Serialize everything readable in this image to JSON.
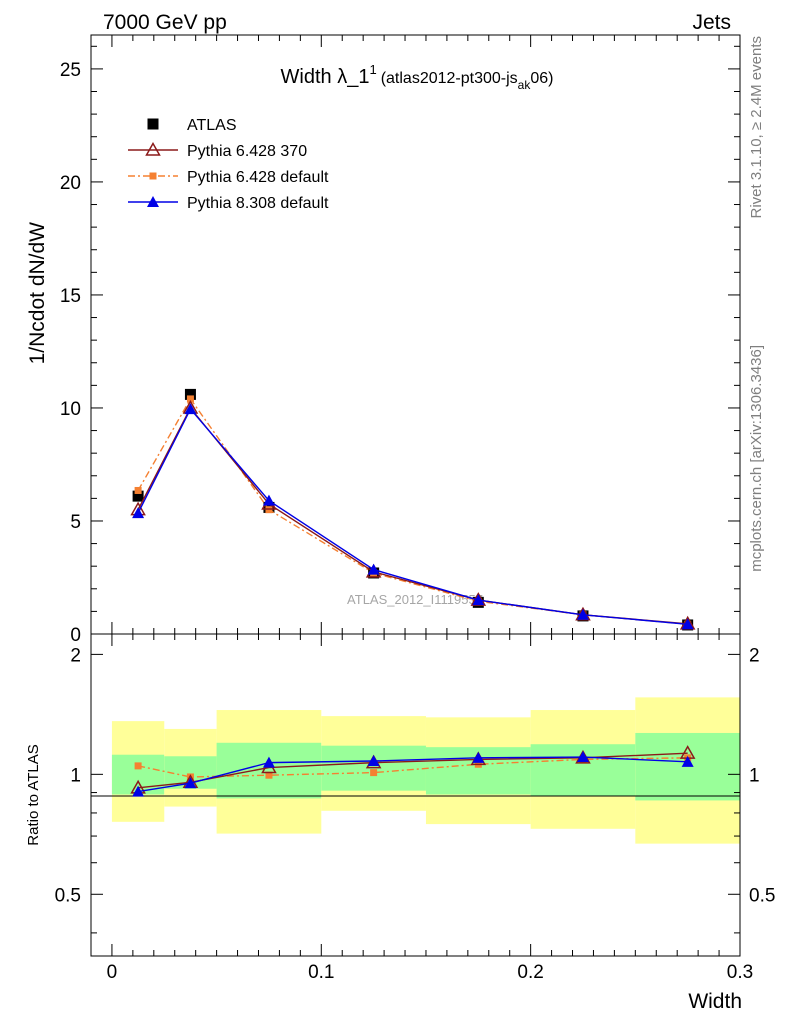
{
  "header": {
    "energy_label": "7000 GeV pp",
    "process_label": "Jets"
  },
  "side_labels": {
    "rivet": "Rivet 3.1.10, ≥ 2.4M events",
    "source": "mcplots.cern.ch [arXiv:1306.3436]"
  },
  "watermark": "ATLAS_2012_I1119557",
  "colors": {
    "data": "#000000",
    "p6_370": "#8b1a1a",
    "p6_default": "#f58031",
    "p8_default": "#0000e6",
    "band_inner": "#99ff99",
    "band_outer": "#ffff99"
  },
  "chart_data": [
    {
      "type": "line",
      "title_main": "Width λ_1",
      "title_sup": "1",
      "title_paren_open": "(atlas2012-pt300-js",
      "title_sub": "ak",
      "title_paren_close": "06)",
      "ylabel": "1/Ncdot dN/dW",
      "xlim": [
        -0.01,
        0.3
      ],
      "ylim": [
        0,
        26.5
      ],
      "yticks": [
        0,
        5,
        10,
        15,
        20,
        25
      ],
      "ytick_labels": [
        "0",
        "5",
        "10",
        "15",
        "20",
        "25"
      ],
      "legend_position": "top-left",
      "x": [
        0.0125,
        0.0375,
        0.075,
        0.125,
        0.175,
        0.225,
        0.275
      ],
      "series": [
        {
          "name": "ATLAS",
          "marker": "square",
          "values": [
            6.1,
            10.6,
            5.6,
            2.7,
            1.4,
            0.8,
            0.4
          ]
        },
        {
          "name": "Pythia 6.428 370",
          "marker": "open-triangle",
          "values": [
            5.5,
            10.0,
            5.75,
            2.75,
            1.5,
            0.85,
            0.45
          ]
        },
        {
          "name": "Pythia 6.428 default",
          "marker": "small-square",
          "dashed": true,
          "values": [
            6.35,
            10.4,
            5.5,
            2.7,
            1.45,
            0.85,
            0.43
          ]
        },
        {
          "name": "Pythia 8.308 default",
          "marker": "filled-triangle",
          "values": [
            5.35,
            9.95,
            5.9,
            2.85,
            1.5,
            0.85,
            0.43
          ]
        }
      ]
    },
    {
      "type": "line",
      "ylabel": "Ratio to ATLAS",
      "xlabel": "Width",
      "xlim": [
        -0.01,
        0.3
      ],
      "ylim": [
        0.35,
        2.25
      ],
      "yticks": [
        0.5,
        1,
        2
      ],
      "ytick_labels": [
        "0.5",
        "1",
        "2"
      ],
      "xticks": [
        0,
        0.1,
        0.2,
        0.3
      ],
      "xtick_labels": [
        "0",
        "0.1",
        "0.2",
        "0.3"
      ],
      "bands": [
        {
          "x0": 0.0,
          "x1": 0.025,
          "inner": [
            0.89,
            1.12
          ],
          "outer": [
            0.76,
            1.36
          ]
        },
        {
          "x0": 0.025,
          "x1": 0.05,
          "inner": [
            0.92,
            1.11
          ],
          "outer": [
            0.83,
            1.3
          ]
        },
        {
          "x0": 0.05,
          "x1": 0.1,
          "inner": [
            0.87,
            1.2
          ],
          "outer": [
            0.71,
            1.45
          ]
        },
        {
          "x0": 0.1,
          "x1": 0.15,
          "inner": [
            0.91,
            1.18
          ],
          "outer": [
            0.81,
            1.4
          ]
        },
        {
          "x0": 0.15,
          "x1": 0.2,
          "inner": [
            0.89,
            1.17
          ],
          "outer": [
            0.75,
            1.39
          ]
        },
        {
          "x0": 0.2,
          "x1": 0.25,
          "inner": [
            0.88,
            1.19
          ],
          "outer": [
            0.73,
            1.45
          ]
        },
        {
          "x0": 0.25,
          "x1": 0.3,
          "inner": [
            0.86,
            1.27
          ],
          "outer": [
            0.67,
            1.56
          ]
        }
      ],
      "x": [
        0.0125,
        0.0375,
        0.075,
        0.125,
        0.175,
        0.225,
        0.275
      ],
      "series": [
        {
          "name": "Pythia 6.428 370",
          "marker": "open-triangle",
          "values": [
            0.925,
            0.955,
            1.04,
            1.07,
            1.09,
            1.1,
            1.13
          ]
        },
        {
          "name": "Pythia 6.428 default",
          "marker": "small-square",
          "dashed": true,
          "values": [
            1.05,
            0.985,
            0.995,
            1.01,
            1.06,
            1.09,
            1.1
          ]
        },
        {
          "name": "Pythia 8.308 default",
          "marker": "filled-triangle",
          "values": [
            0.905,
            0.95,
            1.07,
            1.08,
            1.1,
            1.105,
            1.075
          ]
        }
      ]
    }
  ]
}
